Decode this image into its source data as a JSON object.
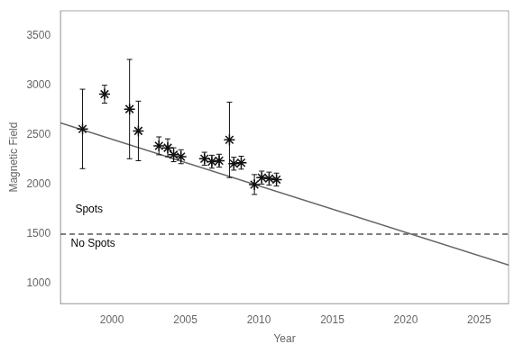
{
  "chart_data": {
    "type": "scatter",
    "x_label": "Year",
    "y_label": "Magnetic Field",
    "xlim": [
      1996.5,
      2027
    ],
    "ylim": [
      800,
      3750
    ],
    "xticks": [
      2000,
      2005,
      2010,
      2015,
      2020,
      2025
    ],
    "yticks": [
      1000,
      1500,
      2000,
      2500,
      3000,
      3500
    ],
    "grid": false,
    "series": [
      {
        "type": "line",
        "color": "#666666",
        "line_style": "solid",
        "x": [
          1996.5,
          2027
        ],
        "values": [
          2620,
          1190
        ]
      },
      {
        "type": "scatter",
        "color": "#111111",
        "marker": "star",
        "x": [
          1998.0,
          1999.5,
          2001.2,
          2001.8,
          2003.2,
          2003.8,
          2004.2,
          2004.7,
          2006.3,
          2006.8,
          2007.3,
          2008.0,
          2008.3,
          2008.8,
          2009.7,
          2010.2,
          2010.7,
          2011.2
        ],
        "values": [
          2560,
          2910,
          2760,
          2540,
          2390,
          2370,
          2300,
          2280,
          2260,
          2230,
          2240,
          2450,
          2210,
          2220,
          2000,
          2070,
          2060,
          2050
        ],
        "errors": [
          400,
          90,
          500,
          300,
          90,
          90,
          70,
          70,
          65,
          65,
          65,
          380,
          65,
          65,
          100,
          65,
          65,
          65
        ]
      }
    ],
    "hlines": [
      {
        "y": 1500,
        "color": "#555555",
        "line_style": "dashed"
      }
    ],
    "annotations": [
      {
        "text": "Spots",
        "x": 1997.5,
        "y": 1720
      },
      {
        "text": "No Spots",
        "x": 1997.2,
        "y": 1375
      }
    ]
  }
}
